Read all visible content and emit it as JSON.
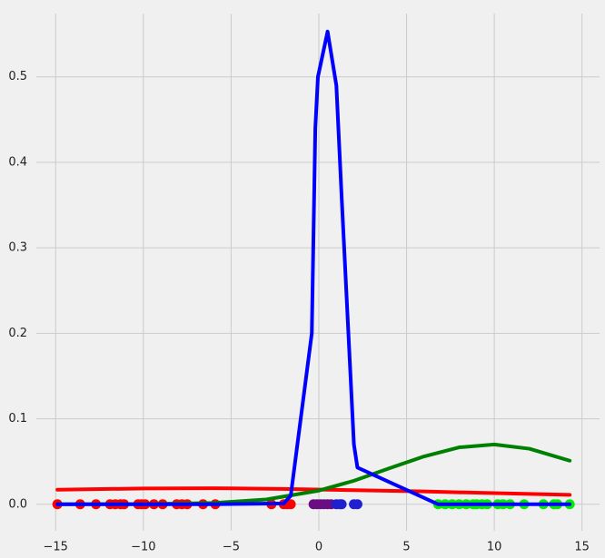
{
  "chart_data": {
    "type": "line",
    "xlim": [
      -16.1,
      16.0
    ],
    "ylim": [
      -0.031,
      0.574
    ],
    "xticks": [
      {
        "value": -15,
        "label": "−15"
      },
      {
        "value": -10,
        "label": "−10"
      },
      {
        "value": -5,
        "label": "−5"
      },
      0,
      5,
      10,
      15
    ],
    "yticks": [
      {
        "value": 0,
        "label": "0.0"
      },
      0.1,
      0.2,
      0.3,
      0.4,
      0.5
    ],
    "grid": true,
    "series": [
      {
        "style": "markers",
        "color": "#ff0000",
        "x": [
          -14.9,
          -13.6,
          -12.7,
          -11.9,
          -11.6,
          -11.3,
          -11.1,
          -10.3,
          -10.1,
          -9.9,
          -9.4,
          -8.9,
          -8.1,
          -7.8,
          -7.5,
          -6.6,
          -5.9,
          -2.7,
          -2.0,
          -1.8,
          -1.6
        ],
        "values": [
          0,
          0,
          0,
          0,
          0,
          0,
          0,
          0,
          0,
          0,
          0,
          0,
          0,
          0,
          0,
          0,
          0,
          0,
          0,
          0,
          0
        ]
      },
      {
        "style": "markers",
        "color": "#6a0d83",
        "x": [
          -0.3,
          -0.1,
          0.1,
          0.3,
          0.5,
          0.7
        ],
        "values": [
          0,
          0,
          0,
          0,
          0,
          0
        ]
      },
      {
        "style": "markers",
        "color": "#2020d0",
        "x": [
          1.0,
          1.2,
          1.3,
          2.0,
          2.2
        ],
        "values": [
          0,
          0,
          0,
          0,
          0
        ]
      },
      {
        "style": "markers",
        "color": "#00ee00",
        "x": [
          6.8,
          7.2,
          7.6,
          8.0,
          8.4,
          8.8,
          9.0,
          9.3,
          9.6,
          10.2,
          10.5,
          10.9,
          11.7,
          12.8,
          13.4,
          13.6,
          14.3
        ],
        "values": [
          0,
          0,
          0,
          0,
          0,
          0,
          0,
          0,
          0,
          0,
          0,
          0,
          0,
          0,
          0,
          0,
          0
        ]
      },
      {
        "style": "line",
        "color": "#ff0000",
        "x": [
          -14.9,
          -10,
          -6,
          -2,
          2,
          6,
          10,
          14.3
        ],
        "values": [
          0.017,
          0.0185,
          0.0188,
          0.018,
          0.0165,
          0.015,
          0.013,
          0.011
        ]
      },
      {
        "style": "line",
        "color": "#008000",
        "x": [
          -14.9,
          -10,
          -6,
          -3,
          0,
          2,
          4,
          6,
          8,
          10,
          12,
          14.3
        ],
        "values": [
          0,
          0.0002,
          0.0015,
          0.0056,
          0.016,
          0.0275,
          0.042,
          0.056,
          0.0666,
          0.07,
          0.065,
          0.051
        ]
      },
      {
        "style": "line",
        "color": "#0000ff",
        "x": [
          -14.9,
          -10,
          -6,
          -2.0,
          -1.6,
          -0.4,
          -0.2,
          -0.05,
          0.5,
          1.0,
          1.3,
          2.0,
          2.2,
          6.8,
          10,
          14.3
        ],
        "values": [
          0,
          0,
          0,
          0.001,
          0.01,
          0.2,
          0.44,
          0.5,
          0.553,
          0.49,
          0.36,
          0.07,
          0.043,
          0,
          0,
          0
        ]
      }
    ]
  }
}
